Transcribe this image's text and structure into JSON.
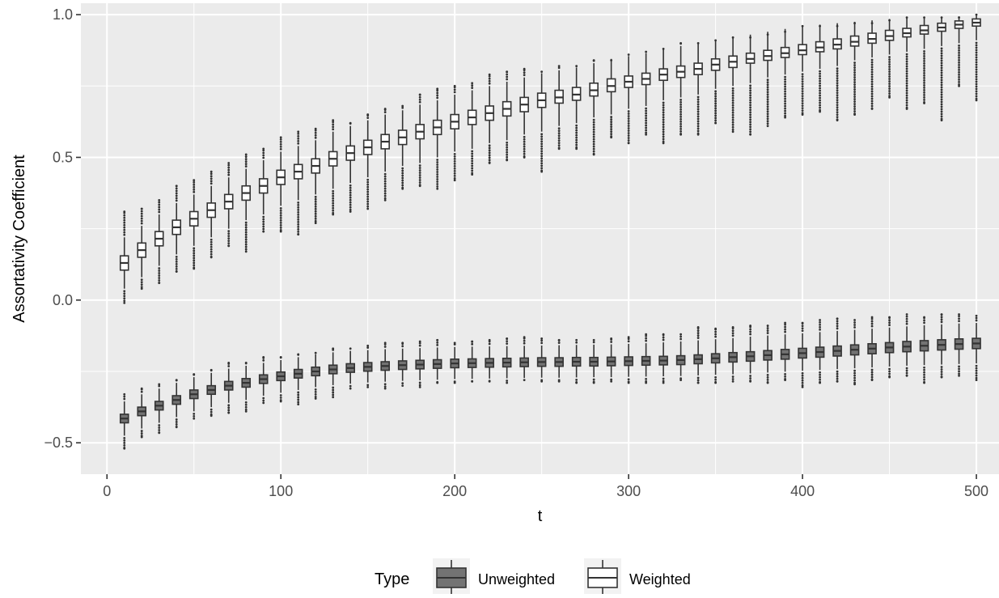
{
  "chart_data": {
    "type": "boxplot",
    "xlabel": "t",
    "ylabel": "Assortativity Coefficient",
    "xlim": [
      -15,
      513
    ],
    "ylim": [
      -0.61,
      1.04
    ],
    "x_ticks": [
      0,
      100,
      200,
      300,
      400,
      500
    ],
    "x_tick_labels": [
      "0",
      "100",
      "200",
      "300",
      "400",
      "500"
    ],
    "y_ticks": [
      -0.5,
      0.0,
      0.5,
      1.0
    ],
    "y_tick_labels": [
      "−0.5",
      "0.0",
      "0.5",
      "1.0"
    ],
    "grid": true,
    "legend": {
      "position": "bottom",
      "title": "Type",
      "entries": [
        "Unweighted",
        "Weighted"
      ]
    },
    "colors": {
      "panel": "#ebebeb",
      "grid": "#ffffff",
      "Unweighted": "#737373",
      "Weighted": "#ffffff",
      "outline": "#333333"
    },
    "x": [
      10,
      20,
      30,
      40,
      50,
      60,
      70,
      80,
      90,
      100,
      110,
      120,
      130,
      140,
      150,
      160,
      170,
      180,
      190,
      200,
      210,
      220,
      230,
      240,
      250,
      260,
      270,
      280,
      290,
      300,
      310,
      320,
      330,
      340,
      350,
      360,
      370,
      380,
      390,
      400,
      410,
      420,
      430,
      440,
      450,
      460,
      470,
      480,
      490,
      500
    ],
    "series": [
      {
        "name": "Unweighted",
        "median": [
          -0.415,
          -0.39,
          -0.37,
          -0.35,
          -0.33,
          -0.315,
          -0.3,
          -0.29,
          -0.277,
          -0.267,
          -0.258,
          -0.25,
          -0.243,
          -0.238,
          -0.234,
          -0.231,
          -0.228,
          -0.226,
          -0.224,
          -0.222,
          -0.221,
          -0.22,
          -0.219,
          -0.218,
          -0.217,
          -0.217,
          -0.216,
          -0.216,
          -0.215,
          -0.214,
          -0.213,
          -0.212,
          -0.21,
          -0.207,
          -0.204,
          -0.2,
          -0.197,
          -0.193,
          -0.19,
          -0.186,
          -0.182,
          -0.178,
          -0.174,
          -0.17,
          -0.166,
          -0.163,
          -0.16,
          -0.157,
          -0.154,
          -0.152
        ],
        "q1": [
          -0.43,
          -0.405,
          -0.385,
          -0.365,
          -0.345,
          -0.33,
          -0.315,
          -0.305,
          -0.292,
          -0.282,
          -0.273,
          -0.265,
          -0.258,
          -0.253,
          -0.249,
          -0.246,
          -0.243,
          -0.241,
          -0.239,
          -0.237,
          -0.236,
          -0.235,
          -0.234,
          -0.233,
          -0.232,
          -0.232,
          -0.231,
          -0.231,
          -0.23,
          -0.229,
          -0.228,
          -0.227,
          -0.226,
          -0.223,
          -0.22,
          -0.217,
          -0.214,
          -0.21,
          -0.207,
          -0.203,
          -0.2,
          -0.196,
          -0.192,
          -0.188,
          -0.184,
          -0.181,
          -0.178,
          -0.175,
          -0.172,
          -0.17
        ],
        "q3": [
          -0.4,
          -0.375,
          -0.355,
          -0.335,
          -0.315,
          -0.3,
          -0.285,
          -0.275,
          -0.262,
          -0.252,
          -0.243,
          -0.235,
          -0.228,
          -0.223,
          -0.219,
          -0.216,
          -0.213,
          -0.211,
          -0.209,
          -0.207,
          -0.206,
          -0.205,
          -0.204,
          -0.203,
          -0.202,
          -0.202,
          -0.201,
          -0.201,
          -0.2,
          -0.199,
          -0.198,
          -0.197,
          -0.195,
          -0.192,
          -0.188,
          -0.184,
          -0.181,
          -0.177,
          -0.173,
          -0.169,
          -0.165,
          -0.161,
          -0.157,
          -0.153,
          -0.149,
          -0.145,
          -0.142,
          -0.139,
          -0.136,
          -0.134
        ],
        "whisker_low": [
          -0.475,
          -0.45,
          -0.43,
          -0.41,
          -0.39,
          -0.375,
          -0.36,
          -0.35,
          -0.335,
          -0.325,
          -0.315,
          -0.305,
          -0.298,
          -0.293,
          -0.289,
          -0.286,
          -0.283,
          -0.281,
          -0.279,
          -0.277,
          -0.276,
          -0.275,
          -0.274,
          -0.273,
          -0.272,
          -0.272,
          -0.271,
          -0.27,
          -0.27,
          -0.269,
          -0.268,
          -0.267,
          -0.266,
          -0.264,
          -0.262,
          -0.26,
          -0.257,
          -0.254,
          -0.251,
          -0.248,
          -0.245,
          -0.242,
          -0.239,
          -0.236,
          -0.233,
          -0.23,
          -0.228,
          -0.226,
          -0.224,
          -0.222
        ],
        "whisker_high": [
          -0.355,
          -0.33,
          -0.31,
          -0.29,
          -0.27,
          -0.255,
          -0.24,
          -0.23,
          -0.22,
          -0.21,
          -0.2,
          -0.19,
          -0.183,
          -0.178,
          -0.175,
          -0.172,
          -0.17,
          -0.168,
          -0.166,
          -0.164,
          -0.163,
          -0.162,
          -0.161,
          -0.16,
          -0.159,
          -0.158,
          -0.157,
          -0.156,
          -0.155,
          -0.153,
          -0.151,
          -0.148,
          -0.145,
          -0.141,
          -0.137,
          -0.133,
          -0.128,
          -0.124,
          -0.12,
          -0.116,
          -0.112,
          -0.108,
          -0.104,
          -0.1,
          -0.096,
          -0.092,
          -0.088,
          -0.085,
          -0.082,
          -0.08
        ],
        "out_min": [
          -0.52,
          -0.48,
          -0.465,
          -0.445,
          -0.415,
          -0.405,
          -0.395,
          -0.39,
          -0.36,
          -0.355,
          -0.365,
          -0.345,
          -0.34,
          -0.31,
          -0.305,
          -0.31,
          -0.3,
          -0.305,
          -0.29,
          -0.29,
          -0.285,
          -0.285,
          -0.29,
          -0.28,
          -0.285,
          -0.285,
          -0.29,
          -0.29,
          -0.285,
          -0.29,
          -0.29,
          -0.29,
          -0.28,
          -0.29,
          -0.29,
          -0.285,
          -0.285,
          -0.29,
          -0.28,
          -0.305,
          -0.29,
          -0.285,
          -0.295,
          -0.28,
          -0.27,
          -0.265,
          -0.29,
          -0.27,
          -0.265,
          -0.28
        ],
        "out_max": [
          -0.33,
          -0.31,
          -0.295,
          -0.28,
          -0.26,
          -0.245,
          -0.22,
          -0.22,
          -0.2,
          -0.2,
          -0.19,
          -0.185,
          -0.17,
          -0.17,
          -0.16,
          -0.15,
          -0.15,
          -0.145,
          -0.14,
          -0.15,
          -0.145,
          -0.14,
          -0.135,
          -0.13,
          -0.135,
          -0.14,
          -0.14,
          -0.14,
          -0.135,
          -0.13,
          -0.12,
          -0.12,
          -0.12,
          -0.095,
          -0.1,
          -0.095,
          -0.09,
          -0.09,
          -0.08,
          -0.08,
          -0.07,
          -0.065,
          -0.07,
          -0.06,
          -0.06,
          -0.05,
          -0.06,
          -0.05,
          -0.05,
          -0.055
        ]
      },
      {
        "name": "Weighted",
        "median": [
          0.13,
          0.175,
          0.215,
          0.255,
          0.285,
          0.315,
          0.345,
          0.375,
          0.4,
          0.43,
          0.45,
          0.47,
          0.495,
          0.515,
          0.535,
          0.555,
          0.57,
          0.59,
          0.605,
          0.625,
          0.64,
          0.655,
          0.67,
          0.685,
          0.7,
          0.71,
          0.72,
          0.735,
          0.75,
          0.765,
          0.775,
          0.79,
          0.8,
          0.81,
          0.825,
          0.835,
          0.845,
          0.855,
          0.865,
          0.875,
          0.885,
          0.895,
          0.905,
          0.915,
          0.925,
          0.935,
          0.945,
          0.955,
          0.965,
          0.972
        ],
        "q1": [
          0.105,
          0.15,
          0.19,
          0.23,
          0.26,
          0.29,
          0.32,
          0.35,
          0.375,
          0.405,
          0.425,
          0.445,
          0.47,
          0.49,
          0.51,
          0.53,
          0.545,
          0.565,
          0.58,
          0.6,
          0.615,
          0.63,
          0.645,
          0.66,
          0.675,
          0.69,
          0.7,
          0.715,
          0.73,
          0.745,
          0.755,
          0.77,
          0.78,
          0.79,
          0.805,
          0.815,
          0.83,
          0.84,
          0.85,
          0.86,
          0.87,
          0.88,
          0.89,
          0.9,
          0.91,
          0.922,
          0.932,
          0.942,
          0.952,
          0.96
        ],
        "q3": [
          0.155,
          0.2,
          0.24,
          0.28,
          0.31,
          0.34,
          0.37,
          0.4,
          0.425,
          0.455,
          0.475,
          0.495,
          0.52,
          0.54,
          0.56,
          0.58,
          0.595,
          0.615,
          0.63,
          0.65,
          0.665,
          0.68,
          0.695,
          0.71,
          0.725,
          0.735,
          0.745,
          0.76,
          0.775,
          0.785,
          0.795,
          0.81,
          0.82,
          0.83,
          0.845,
          0.855,
          0.865,
          0.875,
          0.885,
          0.895,
          0.905,
          0.915,
          0.925,
          0.935,
          0.945,
          0.952,
          0.962,
          0.97,
          0.978,
          0.985
        ],
        "whisker_low": [
          0.04,
          0.08,
          0.12,
          0.16,
          0.19,
          0.22,
          0.25,
          0.28,
          0.3,
          0.33,
          0.35,
          0.37,
          0.39,
          0.41,
          0.43,
          0.45,
          0.47,
          0.48,
          0.5,
          0.52,
          0.53,
          0.55,
          0.56,
          0.58,
          0.59,
          0.61,
          0.62,
          0.64,
          0.65,
          0.67,
          0.68,
          0.7,
          0.71,
          0.72,
          0.74,
          0.75,
          0.76,
          0.78,
          0.79,
          0.8,
          0.81,
          0.82,
          0.84,
          0.85,
          0.86,
          0.87,
          0.88,
          0.89,
          0.9,
          0.91
        ],
        "whisker_high": [
          0.22,
          0.26,
          0.3,
          0.34,
          0.37,
          0.4,
          0.43,
          0.46,
          0.49,
          0.52,
          0.54,
          0.56,
          0.59,
          0.61,
          0.63,
          0.65,
          0.665,
          0.685,
          0.7,
          0.72,
          0.735,
          0.75,
          0.765,
          0.78,
          0.795,
          0.805,
          0.815,
          0.83,
          0.845,
          0.855,
          0.865,
          0.88,
          0.89,
          0.9,
          0.91,
          0.92,
          0.93,
          0.94,
          0.95,
          0.96,
          0.965,
          0.97,
          0.975,
          0.98,
          0.985,
          0.988,
          0.99,
          0.992,
          0.994,
          0.996
        ],
        "out_min": [
          -0.01,
          0.04,
          0.06,
          0.1,
          0.11,
          0.15,
          0.19,
          0.17,
          0.24,
          0.24,
          0.23,
          0.27,
          0.3,
          0.31,
          0.32,
          0.35,
          0.39,
          0.4,
          0.39,
          0.42,
          0.44,
          0.48,
          0.49,
          0.5,
          0.45,
          0.53,
          0.53,
          0.51,
          0.57,
          0.55,
          0.58,
          0.55,
          0.58,
          0.58,
          0.62,
          0.59,
          0.58,
          0.61,
          0.64,
          0.65,
          0.66,
          0.63,
          0.65,
          0.67,
          0.71,
          0.67,
          0.69,
          0.63,
          0.75,
          0.7
        ],
        "out_max": [
          0.31,
          0.32,
          0.35,
          0.4,
          0.42,
          0.45,
          0.48,
          0.51,
          0.53,
          0.57,
          0.59,
          0.6,
          0.63,
          0.62,
          0.65,
          0.67,
          0.68,
          0.72,
          0.74,
          0.75,
          0.76,
          0.79,
          0.8,
          0.81,
          0.8,
          0.82,
          0.82,
          0.84,
          0.84,
          0.86,
          0.87,
          0.88,
          0.9,
          0.9,
          0.91,
          0.92,
          0.92,
          0.93,
          0.94,
          0.96,
          0.96,
          0.96,
          0.97,
          0.97,
          0.98,
          0.99,
          0.99,
          0.99,
          0.99,
          1.0
        ]
      }
    ]
  }
}
